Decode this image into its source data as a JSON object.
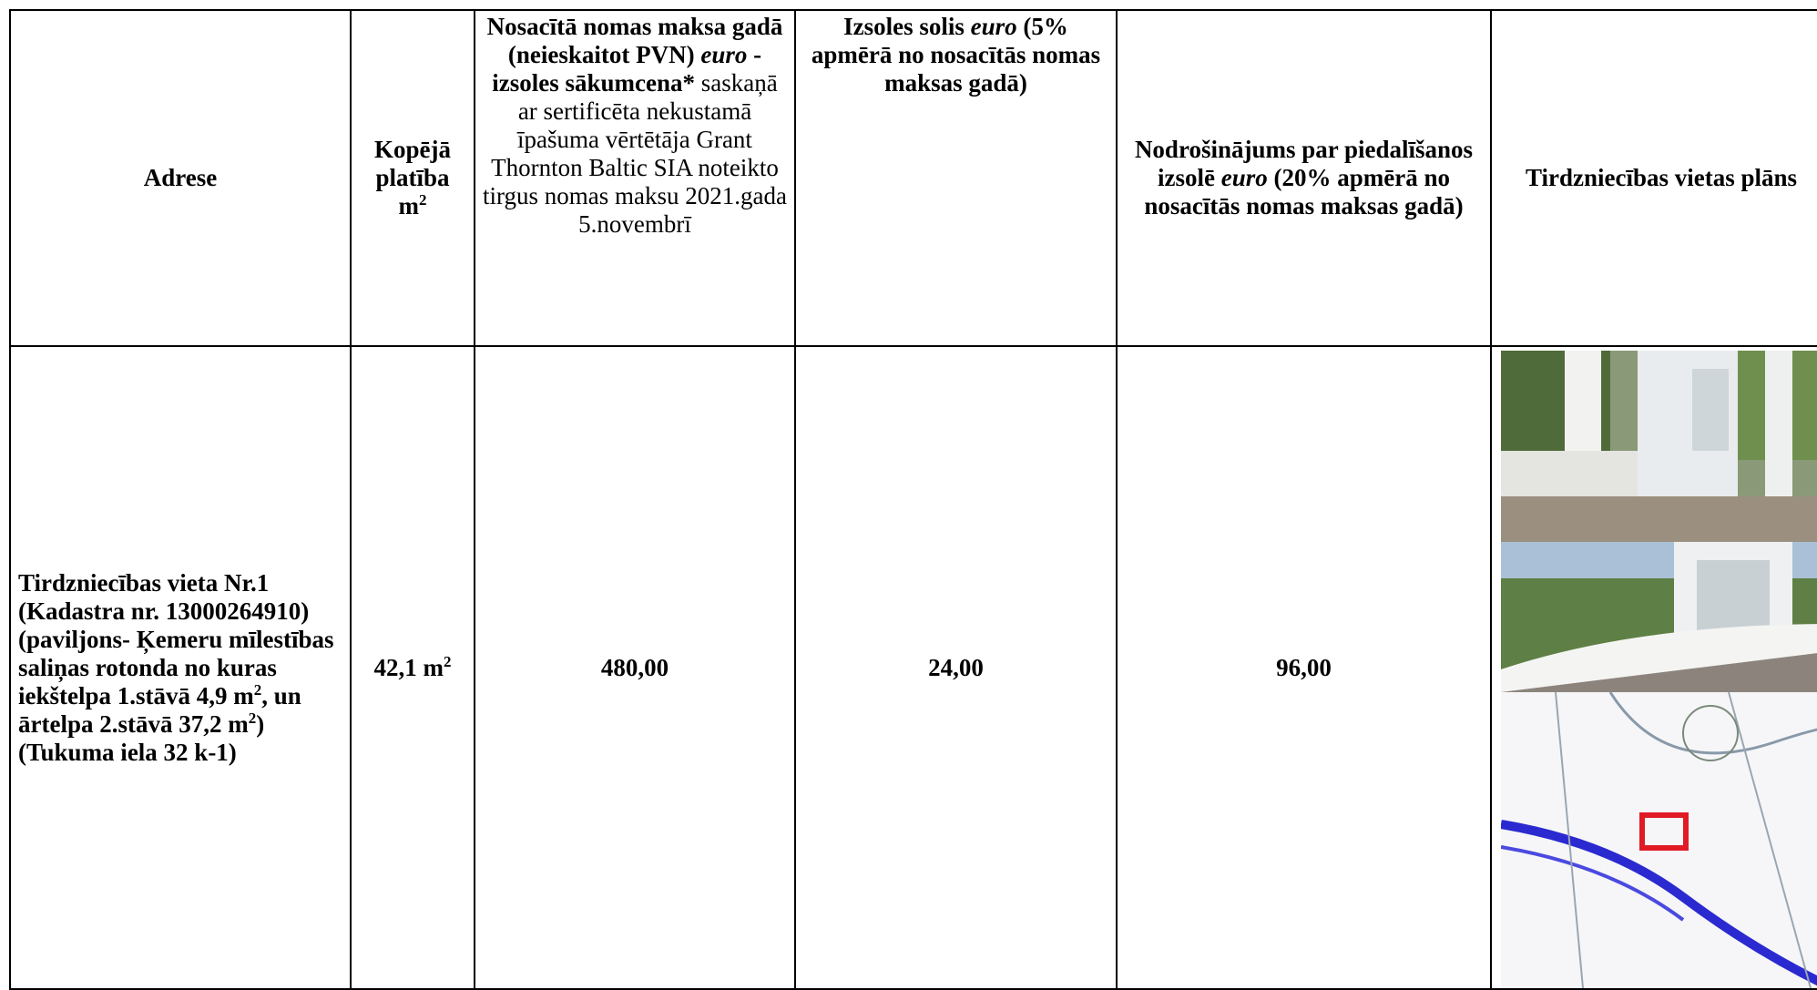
{
  "table": {
    "header": [
      [
        "Adrese"
      ],
      [
        "Kopējā platība m",
        "2"
      ],
      [
        "Nosacītā nomas maksa gadā (neieskaitot PVN) ",
        "euro",
        " -izsoles sākumcena*",
        " saskaņā ar sertificēta nekustamā īpašuma vērtētāja Grant Thornton Baltic SIA noteikto tirgus nomas maksu 2021.gada 5.novembrī"
      ],
      [
        "Izsoles solis ",
        "euro",
        " (5% apmērā no nosacītās nomas maksas gadā)"
      ],
      [
        "Nodrošinājums par piedalīšanos izsolē ",
        "euro",
        " (20% apmērā no nosacītās nomas maksas gadā)"
      ],
      [
        "Tirdzniecības vietas plāns"
      ]
    ],
    "row": [
      [
        "Tirdzniecības vieta Nr.1 (Kadastra nr. 13000264910) (paviljons- Ķemeru mīlestības saliņas rotonda no kuras iekštelpa 1.stāvā 4,9 m",
        "2",
        ", un ārtelpa 2.stāvā 37,2 m",
        "2",
        ") (Tukuma iela 32 k-1)"
      ],
      [
        "42,1 m",
        "2"
      ],
      [
        "480,00"
      ],
      [
        "24,00"
      ],
      [
        "96,00"
      ]
    ]
  }
}
